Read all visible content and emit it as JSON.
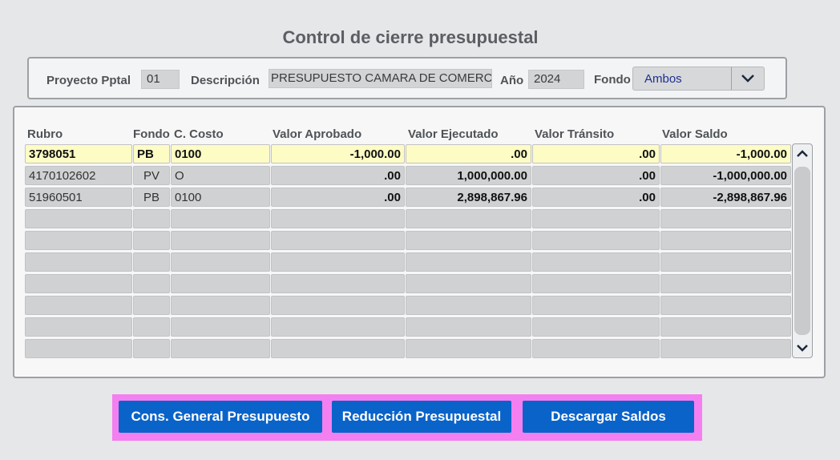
{
  "window": {
    "title": "Control de cierre presupuestal"
  },
  "header": {
    "proyecto_label": "Proyecto Pptal",
    "proyecto_value": "01",
    "descripcion_label": "Descripción",
    "descripcion_value": "PRESUPUESTO CAMARA DE COMERCIO",
    "anio_label": "Año",
    "anio_value": "2024",
    "fondo_label": "Fondo",
    "fondo_value": "Ambos"
  },
  "grid": {
    "columns": [
      "Rubro",
      "Fondo",
      "C. Costo",
      "Valor Aprobado",
      "Valor Ejecutado",
      "Valor Tránsito",
      "Valor Saldo"
    ],
    "rows": [
      [
        "3798051",
        "PB",
        "0100",
        "-1,000.00",
        ".00",
        ".00",
        "-1,000.00"
      ],
      [
        "4170102602",
        "PV",
        "O",
        ".00",
        "1,000,000.00",
        ".00",
        "-1,000,000.00"
      ],
      [
        "51960501",
        "PB",
        "0100",
        ".00",
        "2,898,867.96",
        ".00",
        "-2,898,867.96"
      ]
    ],
    "selected_row": 0
  },
  "actions": {
    "cons_general": "Cons. General Presupuesto",
    "reduccion": "Reducción Presupuestal",
    "descargar": "Descargar Saldos"
  },
  "colors": {
    "accent": "#0a63c9",
    "highlight_border": "#f47ff0",
    "selected_row": "#fcfcc4"
  }
}
